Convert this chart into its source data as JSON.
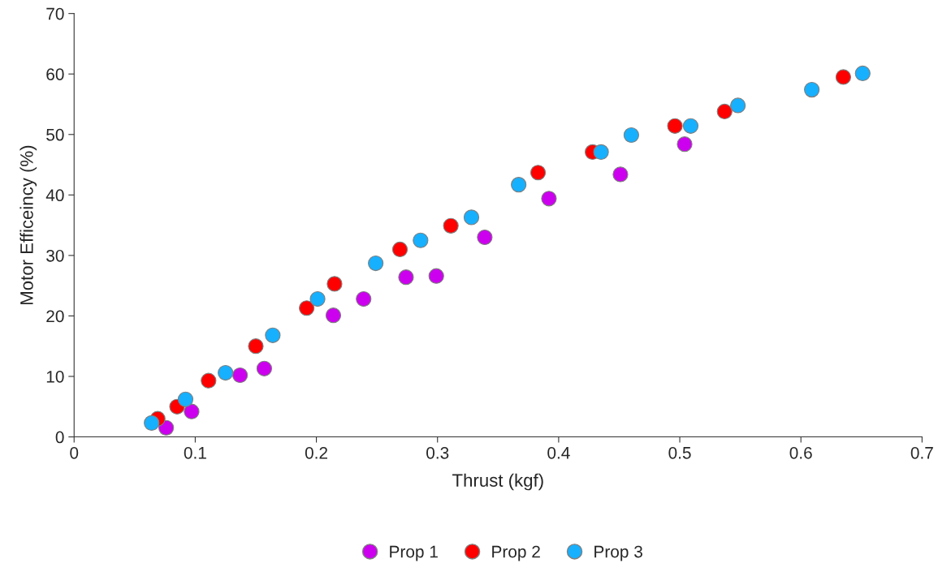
{
  "chart_data": {
    "type": "scatter",
    "xlabel": "Thrust (kgf)",
    "ylabel": "Motor Efficeincy (%)",
    "xlim": [
      0,
      0.7
    ],
    "xticks": [
      0,
      0.1,
      0.2,
      0.3,
      0.4,
      0.5,
      0.6,
      0.7
    ],
    "ylim": [
      0,
      70
    ],
    "yticks": [
      0,
      10,
      20,
      30,
      40,
      50,
      60,
      70
    ],
    "grid": false,
    "legend": "bottom",
    "marker": "circle",
    "series": [
      {
        "name": "Prop 1",
        "color": "#cc00ee",
        "x": [
          0.076,
          0.097,
          0.137,
          0.157,
          0.214,
          0.239,
          0.274,
          0.299,
          0.339,
          0.392,
          0.451,
          0.504
        ],
        "values": [
          1.5,
          4.2,
          10.2,
          11.3,
          20.1,
          22.8,
          26.4,
          26.6,
          33.0,
          39.4,
          43.4,
          48.4
        ]
      },
      {
        "name": "Prop 2",
        "color": "#ff0000",
        "x": [
          0.069,
          0.085,
          0.111,
          0.15,
          0.192,
          0.215,
          0.269,
          0.311,
          0.383,
          0.428,
          0.496,
          0.537,
          0.635
        ],
        "values": [
          3.0,
          5.0,
          9.3,
          15.0,
          21.3,
          25.3,
          31.0,
          34.9,
          43.7,
          47.1,
          51.4,
          53.8,
          59.5
        ]
      },
      {
        "name": "Prop 3",
        "color": "#17b0ff",
        "x": [
          0.064,
          0.092,
          0.125,
          0.164,
          0.201,
          0.249,
          0.286,
          0.328,
          0.367,
          0.435,
          0.46,
          0.509,
          0.548,
          0.609,
          0.651
        ],
        "values": [
          2.3,
          6.2,
          10.6,
          16.8,
          22.8,
          28.7,
          32.5,
          36.3,
          41.7,
          47.1,
          49.9,
          51.4,
          54.8,
          57.4,
          60.1
        ]
      }
    ]
  }
}
